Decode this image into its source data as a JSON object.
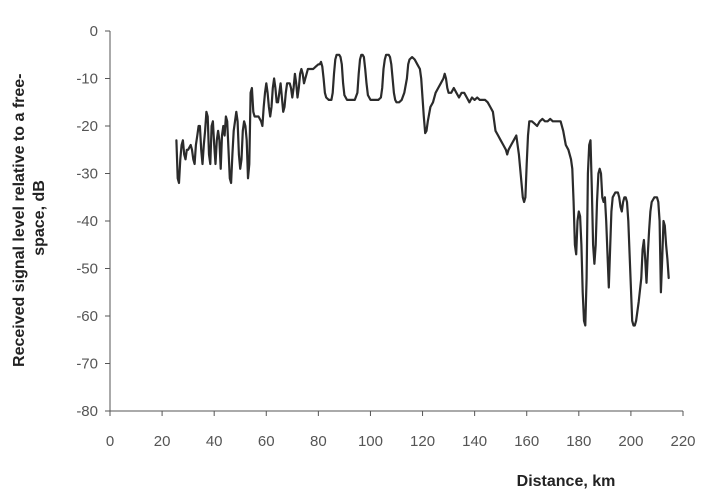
{
  "chart_data": {
    "type": "line",
    "xlabel": "Distance, km",
    "ylabel_lines": [
      "Received signal level relative to a free-",
      "space, dB"
    ],
    "xlim": [
      0,
      220
    ],
    "ylim": [
      -80,
      0
    ],
    "x_ticks": [
      0,
      20,
      40,
      60,
      80,
      100,
      120,
      140,
      160,
      180,
      200,
      220
    ],
    "y_ticks": [
      0,
      -10,
      -20,
      -30,
      -40,
      -50,
      -60,
      -70,
      -80
    ],
    "grid": false,
    "legend": "none",
    "line_color": "#2b2b2b",
    "series": [
      {
        "points": [
          [
            25.5,
            -23
          ],
          [
            26,
            -31
          ],
          [
            26.5,
            -32
          ],
          [
            27,
            -27
          ],
          [
            27.5,
            -24
          ],
          [
            28,
            -23
          ],
          [
            28.5,
            -26
          ],
          [
            29,
            -27
          ],
          [
            29.5,
            -25
          ],
          [
            30,
            -25
          ],
          [
            31,
            -24
          ],
          [
            31.5,
            -25
          ],
          [
            32,
            -27
          ],
          [
            32.5,
            -28
          ],
          [
            33,
            -24
          ],
          [
            33.5,
            -22
          ],
          [
            34,
            -20
          ],
          [
            34.5,
            -20
          ],
          [
            35,
            -25
          ],
          [
            35.5,
            -28
          ],
          [
            36,
            -24
          ],
          [
            36.5,
            -21
          ],
          [
            37,
            -17
          ],
          [
            37.5,
            -18
          ],
          [
            38,
            -26
          ],
          [
            38.5,
            -28
          ],
          [
            39,
            -20
          ],
          [
            39.5,
            -19
          ],
          [
            40,
            -24
          ],
          [
            40.5,
            -28
          ],
          [
            41,
            -23
          ],
          [
            41.5,
            -21
          ],
          [
            42,
            -23
          ],
          [
            42.5,
            -29
          ],
          [
            43,
            -22
          ],
          [
            43.5,
            -20
          ],
          [
            44,
            -22
          ],
          [
            44.5,
            -18
          ],
          [
            45,
            -19
          ],
          [
            45.5,
            -25
          ],
          [
            46,
            -31
          ],
          [
            46.5,
            -32
          ],
          [
            47,
            -26
          ],
          [
            47.5,
            -21
          ],
          [
            48,
            -19
          ],
          [
            48.5,
            -17
          ],
          [
            49,
            -19
          ],
          [
            49.5,
            -26
          ],
          [
            50,
            -29
          ],
          [
            50.5,
            -27
          ],
          [
            51,
            -21
          ],
          [
            51.5,
            -19
          ],
          [
            52,
            -20
          ],
          [
            52.5,
            -23
          ],
          [
            53,
            -31
          ],
          [
            53.5,
            -28
          ],
          [
            54,
            -13
          ],
          [
            54.5,
            -12
          ],
          [
            55,
            -17
          ],
          [
            55.5,
            -18
          ],
          [
            56,
            -18
          ],
          [
            57,
            -18
          ],
          [
            58,
            -19
          ],
          [
            58.5,
            -20
          ],
          [
            59,
            -16
          ],
          [
            59.5,
            -13
          ],
          [
            60,
            -11
          ],
          [
            60.5,
            -13
          ],
          [
            61,
            -16
          ],
          [
            61.5,
            -18
          ],
          [
            62,
            -16
          ],
          [
            62.5,
            -12
          ],
          [
            63,
            -10
          ],
          [
            63.5,
            -12
          ],
          [
            64,
            -15
          ],
          [
            64.5,
            -15
          ],
          [
            65,
            -13
          ],
          [
            65.5,
            -11
          ],
          [
            66,
            -14
          ],
          [
            66.5,
            -17
          ],
          [
            67,
            -16
          ],
          [
            67.5,
            -13
          ],
          [
            68,
            -11
          ],
          [
            69,
            -11
          ],
          [
            69.5,
            -12
          ],
          [
            70,
            -14
          ],
          [
            70.5,
            -12
          ],
          [
            71,
            -9
          ],
          [
            71.5,
            -11
          ],
          [
            72,
            -14
          ],
          [
            72.5,
            -12
          ],
          [
            73,
            -9
          ],
          [
            73.5,
            -8
          ],
          [
            74,
            -9
          ],
          [
            74.5,
            -11
          ],
          [
            75,
            -10
          ],
          [
            76,
            -8
          ],
          [
            77,
            -8
          ],
          [
            78,
            -8
          ],
          [
            79,
            -7.5
          ],
          [
            80,
            -7
          ],
          [
            80.5,
            -7
          ],
          [
            81,
            -6.5
          ],
          [
            81.5,
            -7.5
          ],
          [
            82,
            -10
          ],
          [
            82.5,
            -13
          ],
          [
            83,
            -14
          ],
          [
            84,
            -14.5
          ],
          [
            85,
            -14.5
          ],
          [
            85.5,
            -13
          ],
          [
            86,
            -9
          ],
          [
            86.5,
            -6
          ],
          [
            87,
            -5
          ],
          [
            88,
            -5
          ],
          [
            88.5,
            -5.5
          ],
          [
            89,
            -7
          ],
          [
            89.5,
            -11
          ],
          [
            90,
            -13.5
          ],
          [
            91,
            -14.5
          ],
          [
            92,
            -14.5
          ],
          [
            93,
            -14.5
          ],
          [
            94,
            -14.5
          ],
          [
            95,
            -13
          ],
          [
            95.5,
            -9
          ],
          [
            96,
            -6
          ],
          [
            96.5,
            -5
          ],
          [
            97,
            -5
          ],
          [
            97.5,
            -5.5
          ],
          [
            98,
            -8
          ],
          [
            98.5,
            -11
          ],
          [
            99,
            -13.5
          ],
          [
            100,
            -14.5
          ],
          [
            101,
            -14.5
          ],
          [
            102,
            -14.5
          ],
          [
            103,
            -14.5
          ],
          [
            104,
            -14
          ],
          [
            104.5,
            -12
          ],
          [
            105,
            -8
          ],
          [
            105.5,
            -6
          ],
          [
            106,
            -5
          ],
          [
            107,
            -5
          ],
          [
            107.5,
            -5.5
          ],
          [
            108,
            -7
          ],
          [
            108.5,
            -10
          ],
          [
            109,
            -13
          ],
          [
            109.5,
            -14.5
          ],
          [
            110,
            -15
          ],
          [
            111,
            -15
          ],
          [
            112,
            -14.5
          ],
          [
            113,
            -13
          ],
          [
            114,
            -10
          ],
          [
            114.5,
            -7
          ],
          [
            115,
            -6
          ],
          [
            116,
            -5.5
          ],
          [
            117,
            -6
          ],
          [
            118,
            -7
          ],
          [
            119,
            -8
          ],
          [
            119.5,
            -10
          ],
          [
            120,
            -14
          ],
          [
            120.5,
            -18
          ],
          [
            121,
            -21.5
          ],
          [
            121.5,
            -21
          ],
          [
            122,
            -19
          ],
          [
            123,
            -16
          ],
          [
            124,
            -15
          ],
          [
            125,
            -13
          ],
          [
            126,
            -12
          ],
          [
            127,
            -11
          ],
          [
            128,
            -10
          ],
          [
            128.5,
            -9
          ],
          [
            129,
            -10
          ],
          [
            129.5,
            -12
          ],
          [
            130,
            -13
          ],
          [
            131,
            -13
          ],
          [
            132,
            -12
          ],
          [
            133,
            -13
          ],
          [
            134,
            -14
          ],
          [
            135,
            -13
          ],
          [
            136,
            -13
          ],
          [
            137,
            -14
          ],
          [
            138,
            -15
          ],
          [
            139,
            -14
          ],
          [
            140,
            -14.5
          ],
          [
            141,
            -14
          ],
          [
            142,
            -14.5
          ],
          [
            143,
            -14.5
          ],
          [
            144,
            -14.5
          ],
          [
            145,
            -15
          ],
          [
            146,
            -16
          ],
          [
            147,
            -17
          ],
          [
            147.5,
            -19
          ],
          [
            148,
            -21
          ],
          [
            149,
            -22
          ],
          [
            150,
            -23
          ],
          [
            151,
            -24
          ],
          [
            152,
            -25
          ],
          [
            152.5,
            -26
          ],
          [
            153,
            -25
          ],
          [
            154,
            -24
          ],
          [
            155,
            -23
          ],
          [
            156,
            -22
          ],
          [
            157,
            -26
          ],
          [
            158,
            -32
          ],
          [
            158.5,
            -35
          ],
          [
            159,
            -36
          ],
          [
            159.5,
            -35
          ],
          [
            160,
            -28
          ],
          [
            160.5,
            -22
          ],
          [
            161,
            -19
          ],
          [
            162,
            -19
          ],
          [
            163,
            -19.5
          ],
          [
            164,
            -20
          ],
          [
            165,
            -19
          ],
          [
            166,
            -18.5
          ],
          [
            167,
            -19
          ],
          [
            168,
            -19
          ],
          [
            169,
            -18.5
          ],
          [
            170,
            -19
          ],
          [
            171,
            -19
          ],
          [
            172,
            -19
          ],
          [
            173,
            -19
          ],
          [
            174,
            -21
          ],
          [
            175,
            -24
          ],
          [
            176,
            -25
          ],
          [
            177,
            -27
          ],
          [
            177.5,
            -29
          ],
          [
            178,
            -36
          ],
          [
            178.5,
            -45
          ],
          [
            179,
            -47
          ],
          [
            179.5,
            -40
          ],
          [
            180,
            -38
          ],
          [
            180.5,
            -39
          ],
          [
            181,
            -45
          ],
          [
            181.5,
            -55
          ],
          [
            182,
            -61
          ],
          [
            182.5,
            -62
          ],
          [
            183,
            -52
          ],
          [
            183.5,
            -30
          ],
          [
            184,
            -24
          ],
          [
            184.5,
            -23
          ],
          [
            185,
            -33
          ],
          [
            185.5,
            -45
          ],
          [
            186,
            -49
          ],
          [
            186.5,
            -45
          ],
          [
            187,
            -36
          ],
          [
            187.5,
            -30
          ],
          [
            188,
            -29
          ],
          [
            188.5,
            -30
          ],
          [
            189,
            -35
          ],
          [
            189.5,
            -36
          ],
          [
            190,
            -35
          ],
          [
            190.5,
            -40
          ],
          [
            191,
            -47
          ],
          [
            191.5,
            -54
          ],
          [
            192,
            -46
          ],
          [
            192.5,
            -38
          ],
          [
            193,
            -35
          ],
          [
            194,
            -34
          ],
          [
            195,
            -34
          ],
          [
            195.5,
            -35
          ],
          [
            196,
            -37
          ],
          [
            196.5,
            -38
          ],
          [
            197,
            -36
          ],
          [
            197.5,
            -35
          ],
          [
            198,
            -35
          ],
          [
            198.5,
            -36
          ],
          [
            199,
            -40
          ],
          [
            199.5,
            -47
          ],
          [
            200,
            -54
          ],
          [
            200.5,
            -61
          ],
          [
            201,
            -62
          ],
          [
            201.5,
            -62
          ],
          [
            202,
            -61
          ],
          [
            203,
            -57
          ],
          [
            204,
            -52
          ],
          [
            204.5,
            -46
          ],
          [
            205,
            -44
          ],
          [
            205.5,
            -48
          ],
          [
            206,
            -53
          ],
          [
            206.5,
            -47
          ],
          [
            207,
            -42
          ],
          [
            207.5,
            -38
          ],
          [
            208,
            -36
          ],
          [
            209,
            -35
          ],
          [
            210,
            -35
          ],
          [
            210.5,
            -36
          ],
          [
            211,
            -40
          ],
          [
            211.5,
            -55
          ],
          [
            212,
            -48
          ],
          [
            212.5,
            -40
          ],
          [
            213,
            -41
          ],
          [
            213.5,
            -45
          ],
          [
            214,
            -48
          ],
          [
            214.5,
            -52
          ]
        ]
      }
    ]
  }
}
